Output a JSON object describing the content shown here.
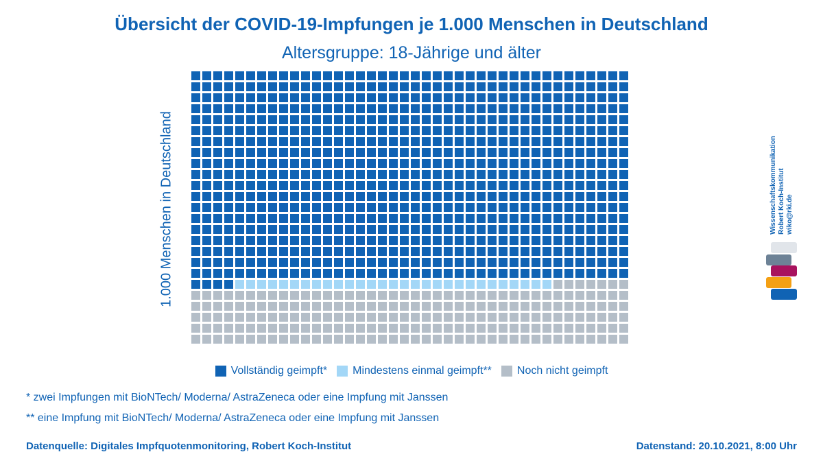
{
  "chart_data": {
    "type": "waffle",
    "title": "Übersicht der COVID-19-Impfungen je 1.000 Menschen in Deutschland",
    "subtitle": "Altersgruppe: 18-Jährige und älter",
    "ylabel": "1.000 Menschen in Deutschland",
    "total": 1000,
    "grid": {
      "columns": 40,
      "rows": 25
    },
    "categories": [
      {
        "name": "Vollständig geimpft*",
        "value": 764,
        "color": "#1063b4"
      },
      {
        "name": "Mindestens einmal geimpft**",
        "value": 29,
        "color": "#a3d7f7"
      },
      {
        "name": "Noch nicht geimpft",
        "value": 207,
        "color": "#b4bec8"
      }
    ],
    "legend_position": "bottom"
  },
  "notes": [
    "* zwei Impfungen mit BioNTech/ Moderna/ AstraZeneca oder eine Impfung mit Janssen",
    "** eine Impfung mit BioNTech/ Moderna/ AstraZeneca oder eine Impfung mit Janssen"
  ],
  "footer": {
    "source": "Datenquelle: Digitales Impfquotenmonitoring, Robert Koch-Institut",
    "date": "Datenstand: 20.10.2021, 8:00 Uhr"
  },
  "brand": {
    "lines": [
      "Wissenschaftskommunikation",
      "Robert Koch-Institut",
      "wiko@rki.de"
    ],
    "bar_colors": [
      "#e1e5ea",
      "#6d8296",
      "#a8125e",
      "#f4a014",
      "#1063b4"
    ]
  }
}
